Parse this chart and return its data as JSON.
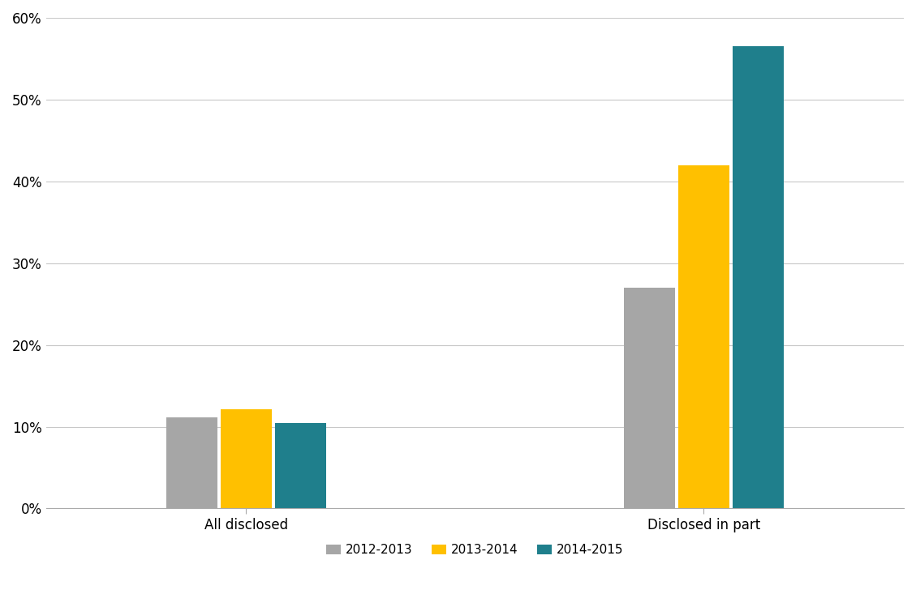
{
  "categories": [
    "All disclosed",
    "Disclosed in part"
  ],
  "series": [
    {
      "label": "2012-2013",
      "values": [
        0.111,
        0.27
      ],
      "color": "#a6a6a6"
    },
    {
      "label": "2013-2014",
      "values": [
        0.121,
        0.42
      ],
      "color": "#ffc000"
    },
    {
      "label": "2014-2015",
      "values": [
        0.105,
        0.565
      ],
      "color": "#1f7f8c"
    }
  ],
  "ylim": [
    0,
    0.6
  ],
  "yticks": [
    0.0,
    0.1,
    0.2,
    0.3,
    0.4,
    0.5,
    0.6
  ],
  "ytick_labels": [
    "0%",
    "10%",
    "20%",
    "30%",
    "40%",
    "50%",
    "60%"
  ],
  "background_color": "#ffffff",
  "grid_color": "#c8c8c8",
  "bar_width": 0.18,
  "legend_fontsize": 11,
  "tick_fontsize": 12,
  "figsize": [
    11.29,
    7.49
  ],
  "group_centers": [
    1.0,
    2.6
  ],
  "xlim": [
    0.3,
    3.3
  ]
}
